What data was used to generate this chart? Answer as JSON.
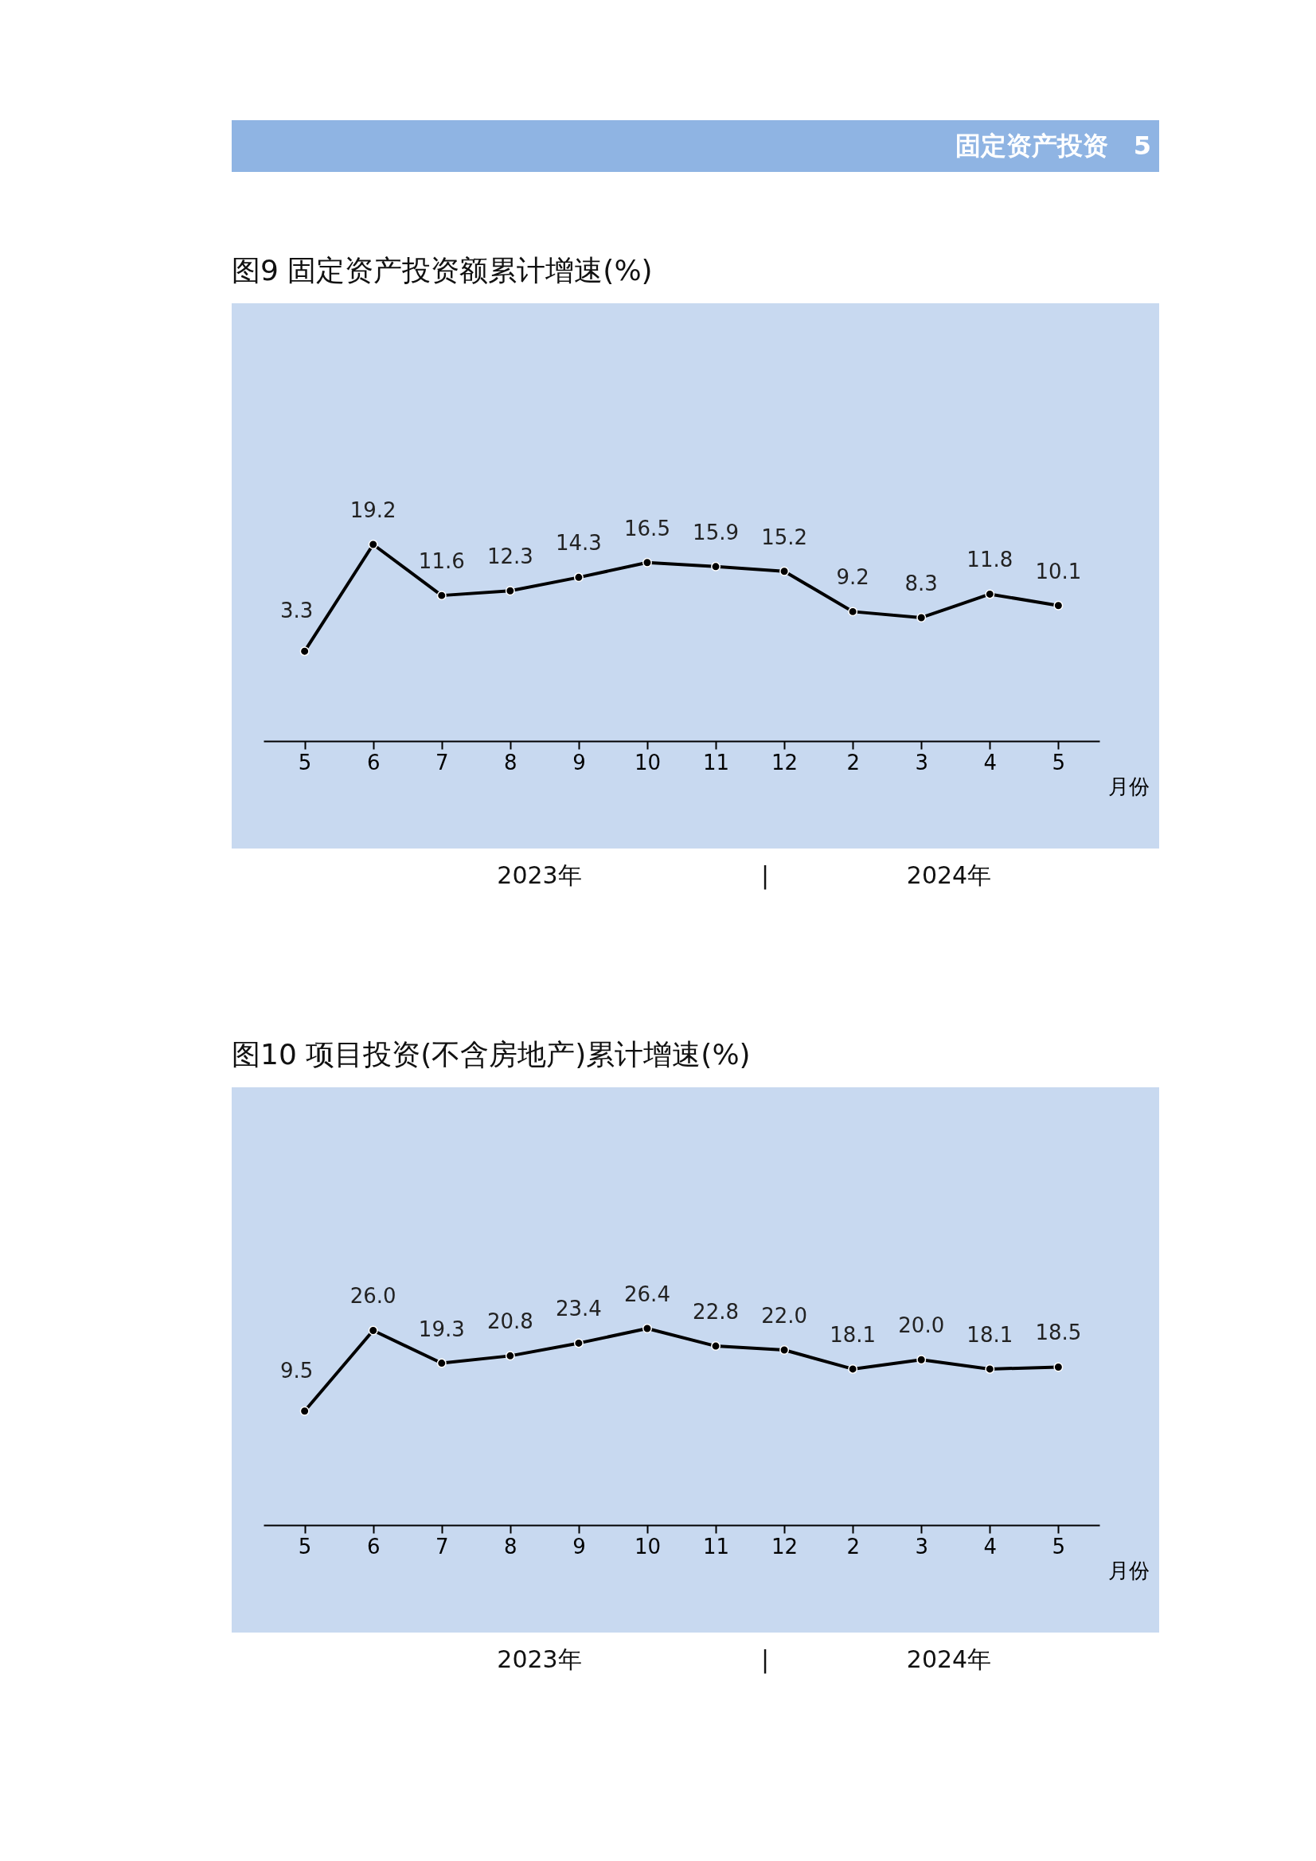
{
  "chart_data": [
    {
      "type": "line",
      "title": "图9  固定资产投资额累计增速(%)",
      "xlabel": "月份",
      "categories": [
        "5",
        "6",
        "7",
        "8",
        "9",
        "10",
        "11",
        "12",
        "2",
        "3",
        "4",
        "5"
      ],
      "series": [
        {
          "color": "#000000",
          "values": [
            3.3,
            19.2,
            11.6,
            12.3,
            14.3,
            16.5,
            15.9,
            15.2,
            9.2,
            8.3,
            11.8,
            10.1
          ],
          "value_labels": [
            "3.3",
            "19.2",
            "11.6",
            "12.3",
            "14.3",
            "16.5",
            "15.9",
            "15.2",
            "9.2",
            "8.3",
            "11.8",
            "10.1"
          ]
        }
      ],
      "marker": "circle",
      "line_style": "solid",
      "annotations": [
        "固定资产投资　5",
        "2023年",
        "|",
        "2024年"
      ]
    },
    {
      "type": "line",
      "title": "图10  项目投资(不含房地产)累计增速(%)",
      "xlabel": "月份",
      "categories": [
        "5",
        "6",
        "7",
        "8",
        "9",
        "10",
        "11",
        "12",
        "2",
        "3",
        "4",
        "5"
      ],
      "series": [
        {
          "color": "#000000",
          "values": [
            9.5,
            26.0,
            19.3,
            20.8,
            23.4,
            26.4,
            22.8,
            22.0,
            18.1,
            20.0,
            18.1,
            18.5
          ],
          "value_labels": [
            "9.5",
            "26.0",
            "19.3",
            "20.8",
            "23.4",
            "26.4",
            "22.8",
            "22.0",
            "18.1",
            "20.0",
            "18.1",
            "18.5"
          ]
        }
      ],
      "marker": "circle",
      "line_style": "solid",
      "annotations": [
        "2023年",
        "|",
        "2024年"
      ]
    }
  ]
}
